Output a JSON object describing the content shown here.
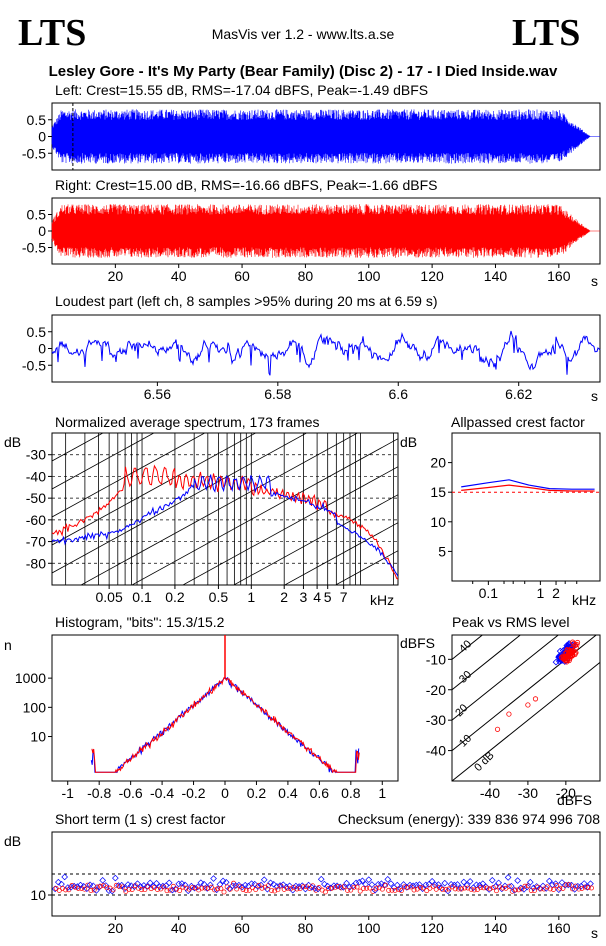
{
  "header": {
    "logo_left": "LTS",
    "logo_right": "LTS",
    "app": "MasVis ver 1.2 - www.lts.a.se",
    "file": "Lesley Gore - It's My Party (Bear Family) (Disc 2) - 17 - I Died Inside.wav"
  },
  "colors": {
    "left": "#0000ff",
    "right": "#ff0000",
    "axis": "#000000"
  },
  "chart_data": [
    {
      "type": "line",
      "name": "left-waveform",
      "title": "Left: Crest=15.55 dB, RMS=-17.04 dBFS, Peak=-1.49 dBFS",
      "y_ticks": [
        "0.5",
        "0",
        "-0.5"
      ],
      "ylim": [
        -1,
        1
      ],
      "xlim": [
        0,
        173
      ],
      "marker_s": 6.59
    },
    {
      "type": "line",
      "name": "right-waveform",
      "title": "Right: Crest=15.00 dB, RMS=-16.66 dBFS, Peak=-1.66 dBFS",
      "y_ticks": [
        "0.5",
        "0",
        "-0.5"
      ],
      "ylim": [
        -1,
        1
      ],
      "xlim": [
        0,
        173
      ],
      "x_ticks": [
        "20",
        "40",
        "60",
        "80",
        "100",
        "120",
        "140",
        "160"
      ],
      "x_unit": "s"
    },
    {
      "type": "line",
      "name": "loudest-part",
      "title": "Loudest part (left  ch, 8 samples >95% during 20 ms at 6.59 s)",
      "y_ticks": [
        "0.5",
        "0",
        "-0.5"
      ],
      "x_ticks": [
        "6.56",
        "6.58",
        "6.6",
        "6.62"
      ],
      "x_unit": "s",
      "xlim": [
        6.5425,
        6.6335
      ]
    },
    {
      "type": "line",
      "name": "spectrum",
      "title": "Normalized average spectrum, 173 frames",
      "ylabel": "dB",
      "y_ticks": [
        "-30",
        "-40",
        "-50",
        "-60",
        "-70",
        "-80"
      ],
      "ylim": [
        -90,
        -20
      ],
      "x_ticks": [
        "0.05",
        "0.1",
        "0.2",
        "0.5",
        "1",
        "2",
        "3",
        "4",
        "5",
        "7"
      ],
      "x_unit": "kHz",
      "x_log": true,
      "grid": true
    },
    {
      "type": "line",
      "name": "allpassed-crest",
      "title": "Allpassed crest factor",
      "ylabel": "dB",
      "y_ticks": [
        "20",
        "15",
        "10",
        "5"
      ],
      "ylim": [
        0,
        25
      ],
      "x_ticks": [
        "0.1",
        "1",
        "2"
      ],
      "x_unit": "kHz",
      "left": [
        {
          "x": 0.03,
          "y": 15.9
        },
        {
          "x": 0.1,
          "y": 16.6
        },
        {
          "x": 0.25,
          "y": 17.1
        },
        {
          "x": 0.6,
          "y": 16.2
        },
        {
          "x": 1.5,
          "y": 15.6
        },
        {
          "x": 4,
          "y": 15.5
        },
        {
          "x": 11,
          "y": 15.5
        }
      ],
      "right": [
        {
          "x": 0.03,
          "y": 15.3
        },
        {
          "x": 0.1,
          "y": 15.8
        },
        {
          "x": 0.25,
          "y": 16.2
        },
        {
          "x": 0.6,
          "y": 15.8
        },
        {
          "x": 1.5,
          "y": 15.3
        },
        {
          "x": 4,
          "y": 15.2
        },
        {
          "x": 11,
          "y": 15.2
        }
      ]
    },
    {
      "type": "line",
      "name": "histogram",
      "title": "Histogram, \"bits\": 15.3/15.2",
      "ylabel": "n",
      "y_ticks": [
        "1000",
        "100",
        "10"
      ],
      "y_log": true,
      "x_ticks": [
        "-1",
        "-0.8",
        "-0.6",
        "-0.4",
        "-0.2",
        "0",
        "0.2",
        "0.4",
        "0.6",
        "0.8",
        "1"
      ],
      "xlim": [
        -1.1,
        1.1
      ]
    },
    {
      "type": "scatter",
      "name": "peak-vs-rms",
      "title": "Peak vs RMS level",
      "ylabel": "dBFS",
      "y_ticks": [
        "-10",
        "-20",
        "-30",
        "-40"
      ],
      "x_ticks": [
        "-40",
        "-30",
        "-20"
      ],
      "x_unit": "dBFS",
      "diag_labels": [
        "40",
        "30",
        "20",
        "10",
        "0 dB"
      ],
      "xlim": [
        -50,
        -11
      ],
      "ylim": [
        -50,
        -2
      ]
    },
    {
      "type": "scatter",
      "name": "short-term-crest",
      "title": "Short term (1 s) crest factor",
      "checksum": "Checksum (energy):   339 836 974 996 708",
      "ylabel": "dB",
      "y_ticks": [
        "10"
      ],
      "x_ticks": [
        "20",
        "40",
        "60",
        "80",
        "100",
        "120",
        "140",
        "160"
      ],
      "x_unit": "s",
      "xlim": [
        0,
        173
      ]
    }
  ]
}
